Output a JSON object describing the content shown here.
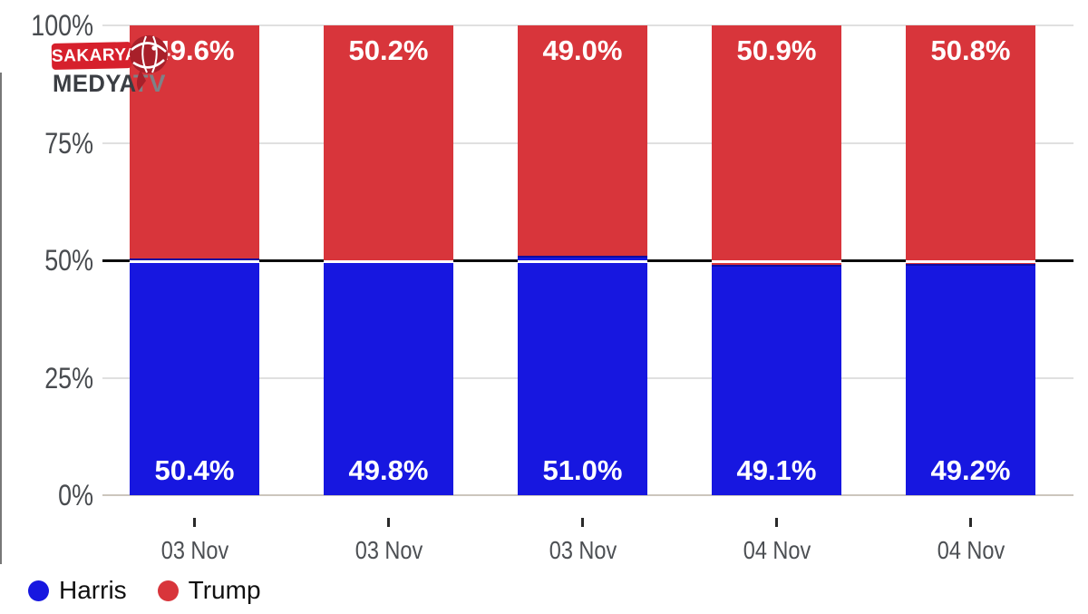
{
  "logo": {
    "badge_text": "SAKARYA",
    "line2": "MEDYA",
    "line2b": "TV"
  },
  "legend": {
    "items": [
      {
        "label": "Harris",
        "color": "#1717e0"
      },
      {
        "label": "Trump",
        "color": "#d8353b"
      }
    ]
  },
  "chart_data": {
    "type": "bar",
    "stacked": true,
    "categories": [
      "03 Nov",
      "03 Nov",
      "03 Nov",
      "04 Nov",
      "04 Nov"
    ],
    "series": [
      {
        "name": "Harris",
        "color": "#1717e0",
        "values": [
          50.4,
          49.8,
          51.0,
          49.1,
          49.2
        ],
        "labels": [
          "50.4%",
          "49.8%",
          "51.0%",
          "49.1%",
          "49.2%"
        ]
      },
      {
        "name": "Trump",
        "color": "#d8353b",
        "values": [
          49.6,
          50.2,
          49.0,
          50.9,
          50.8
        ],
        "labels": [
          "49.6%",
          "50.2%",
          "49.0%",
          "50.9%",
          "50.8%"
        ]
      }
    ],
    "y_ticks": [
      "0%",
      "25%",
      "50%",
      "75%",
      "100%"
    ],
    "ylim": [
      0,
      100
    ],
    "reference_line": {
      "value": 50,
      "color": "#0d0d0d"
    },
    "grid": "horizontal",
    "legend_position": "bottom-left",
    "title": "",
    "xlabel": "",
    "ylabel": ""
  }
}
